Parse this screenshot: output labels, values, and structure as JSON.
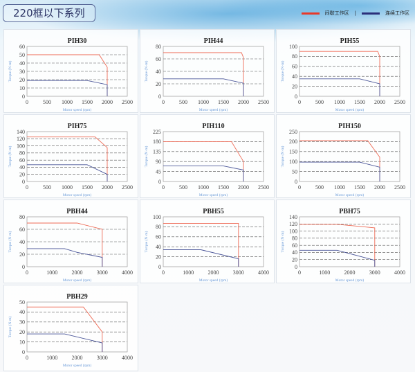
{
  "header": {
    "title": "220框以下系列",
    "legend": [
      {
        "label": "间歇工作区",
        "color": "#e8392a"
      },
      {
        "label": "连续工作区",
        "color": "#2b2f7a"
      }
    ],
    "legend_separator": "|"
  },
  "colors": {
    "intermittent": "#ee6a55",
    "continuous": "#4a5598",
    "axis_label": "#6a9ad8",
    "grid": "#555555"
  },
  "chart_data": [
    {
      "type": "line",
      "title": "PIH30",
      "xlabel": "Motor speed (rpm)",
      "ylabel": "Torque (N·m)",
      "xlim": [
        0,
        2500
      ],
      "xticks": [
        0,
        500,
        1000,
        1500,
        2000,
        2500
      ],
      "ylim": [
        0,
        60
      ],
      "yticks": [
        0,
        10,
        20,
        30,
        40,
        50,
        60
      ],
      "grid": true,
      "series": [
        {
          "name": "间歇工作区",
          "x": [
            0,
            1800,
            2000,
            2000
          ],
          "y": [
            50,
            50,
            35,
            0
          ]
        },
        {
          "name": "连续工作区",
          "x": [
            0,
            1500,
            2000,
            2000
          ],
          "y": [
            19,
            19,
            14,
            0
          ]
        }
      ]
    },
    {
      "type": "line",
      "title": "PIH44",
      "xlabel": "Motor speed (rpm)",
      "ylabel": "Torque (N·m)",
      "xlim": [
        0,
        2500
      ],
      "xticks": [
        0,
        500,
        1000,
        1500,
        2000,
        2500
      ],
      "ylim": [
        0,
        80
      ],
      "yticks": [
        0,
        20,
        40,
        60,
        80
      ],
      "grid": true,
      "series": [
        {
          "name": "间歇工作区",
          "x": [
            0,
            1950,
            2000,
            2000
          ],
          "y": [
            70,
            70,
            62,
            0
          ]
        },
        {
          "name": "连续工作区",
          "x": [
            0,
            1500,
            2000,
            2000
          ],
          "y": [
            28,
            28,
            21,
            0
          ]
        }
      ]
    },
    {
      "type": "line",
      "title": "PIH55",
      "xlabel": "Motor speed (rpm)",
      "ylabel": "Torque (N·m)",
      "xlim": [
        0,
        2500
      ],
      "xticks": [
        0,
        500,
        1000,
        1500,
        2000,
        2500
      ],
      "ylim": [
        0,
        100
      ],
      "yticks": [
        0,
        20,
        40,
        60,
        80,
        100
      ],
      "grid": true,
      "series": [
        {
          "name": "间歇工作区",
          "x": [
            0,
            1950,
            2000,
            2000
          ],
          "y": [
            90,
            90,
            80,
            0
          ]
        },
        {
          "name": "连续工作区",
          "x": [
            0,
            1500,
            2000,
            2000
          ],
          "y": [
            35,
            35,
            25,
            0
          ]
        }
      ]
    },
    {
      "type": "line",
      "title": "PIH75",
      "xlabel": "Motor speed (rpm)",
      "ylabel": "Torque (N·m)",
      "xlim": [
        0,
        2500
      ],
      "xticks": [
        0,
        500,
        1000,
        1500,
        2000,
        2500
      ],
      "ylim": [
        0,
        140
      ],
      "yticks": [
        0,
        20,
        40,
        60,
        80,
        100,
        120,
        140
      ],
      "grid": true,
      "series": [
        {
          "name": "间歇工作区",
          "x": [
            0,
            1700,
            2000,
            2000
          ],
          "y": [
            125,
            125,
            95,
            0
          ]
        },
        {
          "name": "连续工作区",
          "x": [
            0,
            1500,
            2000,
            2000
          ],
          "y": [
            47,
            47,
            20,
            0
          ]
        }
      ]
    },
    {
      "type": "line",
      "title": "PIH110",
      "xlabel": "Motor speed (rpm)",
      "ylabel": "Torque (N·m)",
      "xlim": [
        0,
        2500
      ],
      "xticks": [
        0,
        500,
        1000,
        1500,
        2000,
        2500
      ],
      "ylim": [
        0,
        225
      ],
      "yticks": [
        0,
        45,
        90,
        135,
        180,
        225
      ],
      "grid": true,
      "series": [
        {
          "name": "间歇工作区",
          "x": [
            0,
            1700,
            2000,
            2000
          ],
          "y": [
            180,
            180,
            90,
            0
          ]
        },
        {
          "name": "连续工作区",
          "x": [
            0,
            1500,
            2000,
            2000
          ],
          "y": [
            70,
            70,
            52,
            0
          ]
        }
      ]
    },
    {
      "type": "line",
      "title": "PIH150",
      "xlabel": "Motor speed (rpm)",
      "ylabel": "Torque (N·m)",
      "xlim": [
        0,
        2500
      ],
      "xticks": [
        0,
        500,
        1000,
        1500,
        2000,
        2500
      ],
      "ylim": [
        0,
        250
      ],
      "yticks": [
        0,
        50,
        100,
        150,
        200,
        250
      ],
      "grid": true,
      "series": [
        {
          "name": "间歇工作区",
          "x": [
            0,
            1700,
            2000,
            2000
          ],
          "y": [
            205,
            205,
            122,
            0
          ]
        },
        {
          "name": "连续工作区",
          "x": [
            0,
            1500,
            2000,
            2000
          ],
          "y": [
            97,
            97,
            72,
            0
          ]
        }
      ]
    },
    {
      "type": "line",
      "title": "PBH44",
      "xlabel": "Motor speed (rpm)",
      "ylabel": "Torque (N·m)",
      "xlim": [
        0,
        4000
      ],
      "xticks": [
        0,
        1000,
        2000,
        3000,
        4000
      ],
      "ylim": [
        0,
        80
      ],
      "yticks": [
        0,
        20,
        40,
        60,
        80
      ],
      "grid": true,
      "series": [
        {
          "name": "间歇工作区",
          "x": [
            0,
            2000,
            3000,
            3000
          ],
          "y": [
            70,
            70,
            60,
            0
          ]
        },
        {
          "name": "连续工作区",
          "x": [
            0,
            1500,
            2000,
            3000,
            3000
          ],
          "y": [
            29,
            29,
            23,
            15,
            0
          ]
        }
      ]
    },
    {
      "type": "line",
      "title": "PBH55",
      "xlabel": "Motor speed (rpm)",
      "ylabel": "Torque (N·m)",
      "xlim": [
        0,
        4000
      ],
      "xticks": [
        0,
        1000,
        2000,
        3000,
        4000
      ],
      "ylim": [
        0,
        100
      ],
      "yticks": [
        0,
        20,
        40,
        60,
        80,
        100
      ],
      "grid": true,
      "series": [
        {
          "name": "间歇工作区",
          "x": [
            0,
            3000,
            3000
          ],
          "y": [
            87,
            87,
            0
          ]
        },
        {
          "name": "连续工作区",
          "x": [
            0,
            1500,
            3000,
            3000
          ],
          "y": [
            34,
            34,
            16,
            0
          ]
        }
      ]
    },
    {
      "type": "line",
      "title": "PBH75",
      "xlabel": "Motor speed (rpm)",
      "ylabel": "Torque (N·m)",
      "xlim": [
        0,
        4000
      ],
      "xticks": [
        0,
        1000,
        2000,
        3000,
        4000
      ],
      "ylim": [
        0,
        140
      ],
      "yticks": [
        0,
        20,
        40,
        60,
        80,
        100,
        120,
        140
      ],
      "grid": true,
      "series": [
        {
          "name": "间歇工作区",
          "x": [
            0,
            1500,
            3000,
            3000
          ],
          "y": [
            119,
            119,
            109,
            0
          ]
        },
        {
          "name": "连续工作区",
          "x": [
            0,
            1500,
            3000,
            3000
          ],
          "y": [
            46,
            46,
            18,
            0
          ]
        }
      ]
    },
    {
      "type": "line",
      "title": "PBH29",
      "xlabel": "Motor speed (rpm)",
      "ylabel": "Torque (N·m)",
      "xlim": [
        0,
        4000
      ],
      "xticks": [
        0,
        1000,
        2000,
        3000,
        4000
      ],
      "ylim": [
        0,
        50
      ],
      "yticks": [
        0,
        10,
        20,
        30,
        40,
        50
      ],
      "grid": true,
      "series": [
        {
          "name": "间歇工作区",
          "x": [
            0,
            2250,
            3000,
            3000
          ],
          "y": [
            45,
            45,
            20,
            0
          ]
        },
        {
          "name": "连续工作区",
          "x": [
            0,
            1500,
            3000,
            3000
          ],
          "y": [
            18,
            18,
            9,
            0
          ]
        }
      ]
    }
  ]
}
